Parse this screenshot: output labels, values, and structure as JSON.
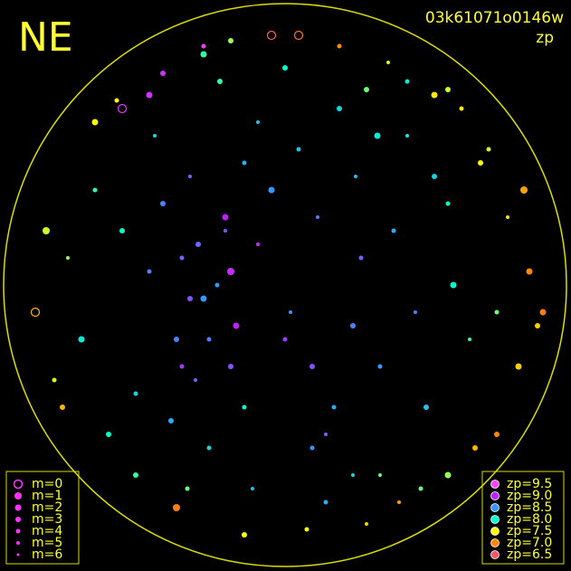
{
  "chart_data": {
    "type": "scatter",
    "title": "NE",
    "subtitle": "03k61071o0146w",
    "color_label": "zp",
    "xlim": [
      -1,
      1
    ],
    "ylim": [
      -1,
      1
    ],
    "x": [
      -0.45,
      -0.38,
      -0.3,
      -0.22,
      -0.15,
      -0.4,
      -0.33,
      -0.25,
      -0.18,
      -0.1,
      -0.5,
      -0.42,
      -0.35,
      -0.28,
      -0.2,
      -0.05,
      0.05,
      0.12,
      0.2,
      0.28,
      0.02,
      0.1,
      0.18,
      0.26,
      0.34,
      -0.55,
      -0.6,
      -0.48,
      -0.36,
      -0.24,
      0.4,
      0.48,
      0.55,
      0.62,
      0.35,
      0.45,
      0.52,
      0.6,
      0.68,
      0.3,
      -0.7,
      -0.75,
      -0.8,
      -0.65,
      -0.85,
      0.72,
      0.78,
      0.82,
      0.86,
      0.75,
      -0.12,
      0.0,
      0.15,
      -0.3,
      0.25,
      -0.2,
      0.08,
      0.38,
      -0.45,
      0.5,
      -0.88,
      -0.92,
      0.9,
      0.93,
      -0.6,
      0.65,
      -0.4,
      0.42,
      0.05,
      -0.15,
      0.2,
      -0.7,
      0.7,
      -0.3,
      0.3,
      -0.55,
      0.55,
      0.0,
      -0.2,
      0.15,
      -0.35,
      -0.28,
      -0.22,
      -0.38,
      -0.32,
      -0.1,
      0.1,
      0.25,
      -0.5,
      0.45,
      0.88,
      -0.82,
      0.6,
      -0.62,
      0.78,
      -0.15,
      0.35,
      -0.05,
      0.6,
      0.95
    ],
    "y": [
      0.3,
      0.1,
      -0.05,
      0.2,
      0.45,
      -0.2,
      -0.35,
      0.0,
      -0.15,
      0.6,
      0.05,
      -0.5,
      0.4,
      -0.6,
      -0.3,
      0.35,
      0.5,
      0.25,
      0.65,
      0.1,
      -0.1,
      -0.3,
      -0.45,
      0.4,
      0.55,
      -0.4,
      0.2,
      0.55,
      -0.75,
      0.75,
      0.2,
      -0.1,
      0.4,
      0.0,
      -0.3,
      0.55,
      -0.45,
      0.3,
      -0.2,
      0.72,
      0.35,
      -0.2,
      0.1,
      -0.55,
      -0.35,
      0.45,
      -0.1,
      0.25,
      -0.3,
      0.5,
      -0.75,
      0.8,
      -0.8,
      0.85,
      -0.7,
      0.9,
      -0.9,
      0.82,
      0.78,
      -0.75,
      0.2,
      -0.1,
      0.05,
      -0.15,
      0.65,
      0.65,
      -0.82,
      -0.8,
      0.92,
      -0.92,
      0.88,
      0.6,
      -0.6,
      0.88,
      -0.88,
      -0.7,
      0.7,
      -0.2,
      0.05,
      -0.55,
      -0.05,
      -0.2,
      0.25,
      -0.3,
      0.15,
      0.15,
      -0.6,
      -0.15,
      0.7,
      0.75,
      0.35,
      -0.45,
      -0.7,
      0.68,
      -0.55,
      -0.45,
      -0.7,
      0.92,
      0.72,
      -0.1
    ],
    "m": [
      3,
      4,
      2,
      5,
      4,
      3,
      5,
      4,
      2,
      5,
      4,
      3,
      5,
      4,
      3,
      2,
      4,
      5,
      3,
      4,
      5,
      3,
      4,
      5,
      2,
      4,
      3,
      5,
      4,
      3,
      4,
      5,
      3,
      2,
      4,
      5,
      3,
      4,
      5,
      3,
      4,
      2,
      5,
      3,
      4,
      3,
      4,
      5,
      2,
      4,
      5,
      3,
      4,
      2,
      5,
      3,
      4,
      5,
      3,
      4,
      1,
      0,
      2,
      3,
      0,
      4,
      1,
      5,
      0,
      3,
      4,
      2,
      3,
      4,
      5,
      3,
      2,
      4,
      1,
      5,
      3,
      4,
      2,
      4,
      3,
      5,
      4,
      3,
      2,
      4,
      1,
      3,
      2,
      4,
      3,
      4,
      5,
      0,
      3,
      2
    ],
    "zp": [
      8.6,
      8.7,
      8.5,
      8.8,
      8.4,
      8.6,
      8.7,
      8.5,
      9.0,
      8.3,
      8.6,
      8.4,
      8.7,
      8.2,
      8.8,
      8.5,
      8.3,
      8.6,
      8.2,
      8.7,
      8.5,
      8.8,
      8.4,
      8.3,
      8.1,
      8.2,
      8.0,
      8.2,
      7.8,
      7.9,
      8.4,
      8.6,
      8.2,
      8.0,
      8.5,
      8.1,
      8.3,
      8.0,
      7.9,
      7.8,
      7.9,
      8.1,
      7.7,
      8.0,
      7.6,
      7.5,
      7.8,
      7.4,
      7.3,
      7.6,
      8.3,
      8.0,
      8.4,
      7.9,
      8.2,
      7.7,
      7.5,
      7.6,
      9.2,
      7.8,
      7.6,
      7.2,
      7.0,
      7.3,
      9.3,
      7.4,
      6.9,
      7.1,
      6.8,
      7.5,
      7.0,
      7.5,
      7.2,
      9.4,
      7.3,
      7.9,
      7.4,
      8.9,
      9.1,
      8.7,
      8.8,
      8.6,
      9.0,
      8.9,
      8.7,
      9.1,
      8.5,
      8.6,
      9.2,
      8.1,
      7.1,
      7.2,
      7.7,
      7.5,
      7.0,
      8.0,
      7.8,
      6.6,
      7.6,
      6.9
    ],
    "size_legend": {
      "values": [
        0,
        1,
        2,
        3,
        4,
        5,
        6
      ],
      "value_labels": [
        "m=0",
        "m=1",
        "m=2",
        "m=3",
        "m=4",
        "m=5",
        "m=6"
      ],
      "color": "#ff33ff"
    },
    "color_legend": {
      "values": [
        9.5,
        9.0,
        8.5,
        8.0,
        7.5,
        7.0,
        6.5
      ],
      "value_labels": [
        "zp=9.5",
        "zp=9.0",
        "zp=8.5",
        "zp=8.0",
        "zp=7.5",
        "zp=7.0",
        "zp=6.5"
      ],
      "colors": [
        "#ff44ff",
        "#bb22ff",
        "#3399ff",
        "#00ffcc",
        "#ffff00",
        "#ff8800",
        "#ff5566"
      ]
    }
  }
}
